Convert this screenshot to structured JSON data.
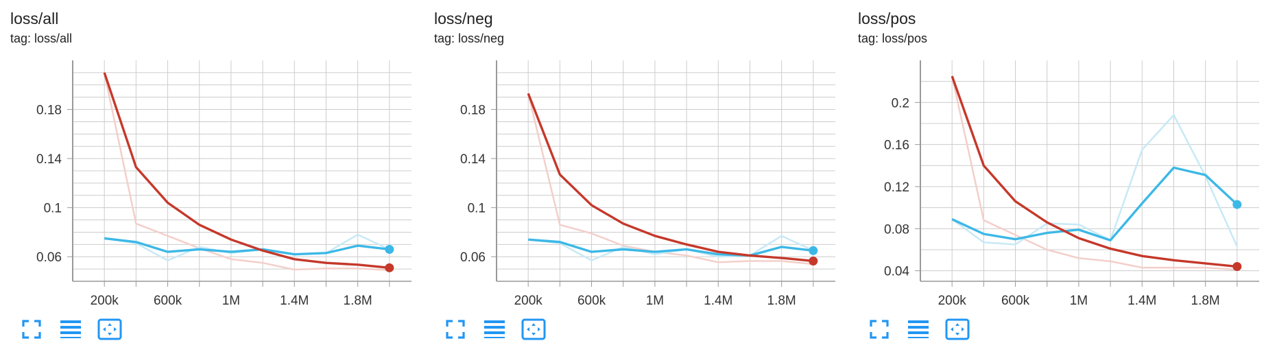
{
  "colors": {
    "accent_blue": "#3cb8e6",
    "accent_red": "#c5382a",
    "blue_raw": "#c7e9f6",
    "red_raw": "#f3cfca",
    "grid": "#cccccc",
    "axis": "#999999",
    "icon_blue": "#2196f3"
  },
  "toolbar": {
    "icons": [
      "fullscreen-icon",
      "toggle-log-scale-icon",
      "fit-domain-icon"
    ]
  },
  "chart_data": [
    {
      "type": "line",
      "title": "loss/all",
      "tag": "tag: loss/all",
      "x": [
        200000,
        400000,
        600000,
        800000,
        1000000,
        1200000,
        1400000,
        1600000,
        1800000,
        2000000
      ],
      "x_ticks": [
        {
          "v": 200000,
          "label": "200k"
        },
        {
          "v": 600000,
          "label": "600k"
        },
        {
          "v": 1000000,
          "label": "1M"
        },
        {
          "v": 1400000,
          "label": "1.4M"
        },
        {
          "v": 1800000,
          "label": "1.8M"
        }
      ],
      "xlim": [
        0,
        2200000
      ],
      "ylim": [
        0.04,
        0.22
      ],
      "y_ticks": [
        {
          "v": 0.06,
          "label": "0.06"
        },
        {
          "v": 0.1,
          "label": "0.1"
        },
        {
          "v": 0.14,
          "label": "0.14"
        },
        {
          "v": 0.18,
          "label": "0.18"
        }
      ],
      "y_grid": [
        0.05,
        0.06,
        0.07,
        0.08,
        0.09,
        0.1,
        0.11,
        0.12,
        0.13,
        0.14,
        0.15,
        0.16,
        0.17,
        0.18,
        0.19,
        0.2,
        0.21
      ],
      "series": [
        {
          "color": "#c5382a",
          "raw_color": "#f3cfca",
          "values": [
            0.21,
            0.133,
            0.104,
            0.086,
            0.074,
            0.065,
            0.058,
            0.055,
            0.0535,
            0.051
          ],
          "raw_values": [
            0.21,
            0.087,
            0.077,
            0.067,
            0.058,
            0.055,
            0.0495,
            0.0505,
            0.0505,
            0.049
          ]
        },
        {
          "color": "#3cb8e6",
          "raw_color": "#c7e9f6",
          "values": [
            0.075,
            0.072,
            0.064,
            0.066,
            0.064,
            0.066,
            0.062,
            0.063,
            0.069,
            0.066
          ],
          "raw_values": [
            0.075,
            0.071,
            0.057,
            0.068,
            0.063,
            0.066,
            0.062,
            0.063,
            0.078,
            0.066
          ]
        }
      ],
      "grid": true,
      "legend": "none"
    },
    {
      "type": "line",
      "title": "loss/neg",
      "tag": "tag: loss/neg",
      "x": [
        200000,
        400000,
        600000,
        800000,
        1000000,
        1200000,
        1400000,
        1600000,
        1800000,
        2000000
      ],
      "x_ticks": [
        {
          "v": 200000,
          "label": "200k"
        },
        {
          "v": 600000,
          "label": "600k"
        },
        {
          "v": 1000000,
          "label": "1M"
        },
        {
          "v": 1400000,
          "label": "1.4M"
        },
        {
          "v": 1800000,
          "label": "1.8M"
        }
      ],
      "xlim": [
        0,
        2200000
      ],
      "ylim": [
        0.04,
        0.22
      ],
      "y_ticks": [
        {
          "v": 0.06,
          "label": "0.06"
        },
        {
          "v": 0.1,
          "label": "0.1"
        },
        {
          "v": 0.14,
          "label": "0.14"
        },
        {
          "v": 0.18,
          "label": "0.18"
        }
      ],
      "y_grid": [
        0.05,
        0.06,
        0.07,
        0.08,
        0.09,
        0.1,
        0.11,
        0.12,
        0.13,
        0.14,
        0.15,
        0.16,
        0.17,
        0.18,
        0.19,
        0.2,
        0.21
      ],
      "series": [
        {
          "color": "#c5382a",
          "raw_color": "#f3cfca",
          "values": [
            0.193,
            0.127,
            0.102,
            0.087,
            0.077,
            0.07,
            0.064,
            0.061,
            0.059,
            0.0565
          ],
          "raw_values": [
            0.193,
            0.086,
            0.079,
            0.069,
            0.064,
            0.061,
            0.0555,
            0.0565,
            0.0565,
            0.054
          ]
        },
        {
          "color": "#3cb8e6",
          "raw_color": "#c7e9f6",
          "values": [
            0.074,
            0.072,
            0.064,
            0.066,
            0.064,
            0.066,
            0.062,
            0.061,
            0.068,
            0.065
          ],
          "raw_values": [
            0.074,
            0.071,
            0.057,
            0.068,
            0.062,
            0.066,
            0.06,
            0.061,
            0.077,
            0.065
          ]
        }
      ],
      "grid": true,
      "legend": "none"
    },
    {
      "type": "line",
      "title": "loss/pos",
      "tag": "tag: loss/pos",
      "x": [
        200000,
        400000,
        600000,
        800000,
        1000000,
        1200000,
        1400000,
        1600000,
        1800000,
        2000000
      ],
      "x_ticks": [
        {
          "v": 200000,
          "label": "200k"
        },
        {
          "v": 600000,
          "label": "600k"
        },
        {
          "v": 1000000,
          "label": "1M"
        },
        {
          "v": 1400000,
          "label": "1.4M"
        },
        {
          "v": 1800000,
          "label": "1.8M"
        }
      ],
      "xlim": [
        0,
        2200000
      ],
      "ylim": [
        0.03,
        0.24
      ],
      "y_ticks": [
        {
          "v": 0.04,
          "label": "0.04"
        },
        {
          "v": 0.08,
          "label": "0.08"
        },
        {
          "v": 0.12,
          "label": "0.12"
        },
        {
          "v": 0.16,
          "label": "0.16"
        },
        {
          "v": 0.2,
          "label": "0.2"
        }
      ],
      "y_grid": [
        0.04,
        0.06,
        0.08,
        0.1,
        0.12,
        0.14,
        0.16,
        0.18,
        0.2,
        0.22
      ],
      "series": [
        {
          "color": "#c5382a",
          "raw_color": "#f3cfca",
          "values": [
            0.225,
            0.14,
            0.106,
            0.086,
            0.071,
            0.061,
            0.054,
            0.05,
            0.047,
            0.044
          ],
          "raw_values": [
            0.225,
            0.088,
            0.074,
            0.06,
            0.052,
            0.049,
            0.043,
            0.043,
            0.043,
            0.041
          ]
        },
        {
          "color": "#3cb8e6",
          "raw_color": "#c7e9f6",
          "values": [
            0.089,
            0.075,
            0.07,
            0.076,
            0.079,
            0.069,
            0.104,
            0.138,
            0.131,
            0.103
          ],
          "raw_values": [
            0.089,
            0.067,
            0.065,
            0.085,
            0.084,
            0.069,
            0.155,
            0.188,
            0.13,
            0.063
          ]
        }
      ],
      "grid": true,
      "legend": "none"
    }
  ]
}
